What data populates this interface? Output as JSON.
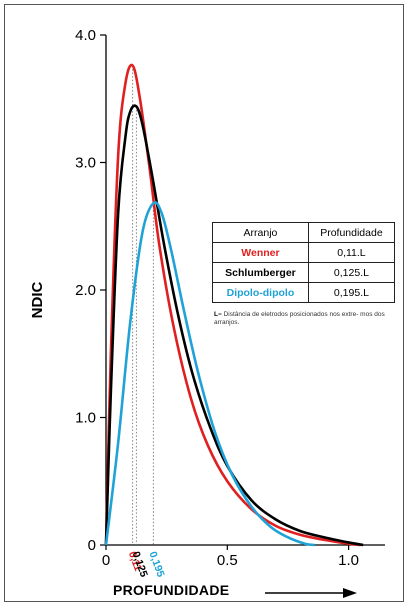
{
  "chart_data": {
    "type": "line",
    "xlabel": "PROFUNDIDADE",
    "ylabel": "NDIC",
    "xlim": [
      0,
      1.15
    ],
    "ylim": [
      0,
      4.0
    ],
    "x_ticks": [
      {
        "value": 0,
        "label": "0"
      },
      {
        "value": 0.5,
        "label": "0.5"
      },
      {
        "value": 1.0,
        "label": "1.0"
      }
    ],
    "y_ticks": [
      {
        "value": 0,
        "label": "0"
      },
      {
        "value": 1.0,
        "label": "1.0"
      },
      {
        "value": 2.0,
        "label": "2.0"
      },
      {
        "value": 3.0,
        "label": "3.0"
      },
      {
        "value": 4.0,
        "label": "4.0"
      }
    ],
    "peak_markers": [
      {
        "x": 0.11,
        "label": "0,11",
        "color": "#e02020"
      },
      {
        "x": 0.125,
        "label": "0,125",
        "color": "#000000"
      },
      {
        "x": 0.195,
        "label": "0,195",
        "color": "#1fa3d6"
      }
    ],
    "series": [
      {
        "name": "Wenner",
        "color": "#e02020",
        "x": [
          0,
          0.02,
          0.05,
          0.08,
          0.11,
          0.14,
          0.18,
          0.22,
          0.28,
          0.35,
          0.42,
          0.5,
          0.6,
          0.7,
          0.8,
          0.9,
          1.0,
          1.05
        ],
        "y": [
          0,
          1.5,
          3.05,
          3.62,
          3.76,
          3.5,
          2.95,
          2.35,
          1.7,
          1.15,
          0.78,
          0.5,
          0.28,
          0.15,
          0.08,
          0.04,
          0.01,
          0
        ]
      },
      {
        "name": "Schlumberger",
        "color": "#000000",
        "x": [
          0,
          0.02,
          0.05,
          0.08,
          0.1,
          0.125,
          0.15,
          0.19,
          0.24,
          0.3,
          0.36,
          0.43,
          0.5,
          0.6,
          0.7,
          0.8,
          0.9,
          1.0,
          1.06
        ],
        "y": [
          0,
          1.2,
          2.6,
          3.2,
          3.4,
          3.44,
          3.3,
          2.9,
          2.35,
          1.78,
          1.32,
          0.92,
          0.62,
          0.35,
          0.2,
          0.11,
          0.06,
          0.02,
          0
        ]
      },
      {
        "name": "Dipolo-dipolo",
        "color": "#1fa3d6",
        "x": [
          0,
          0.05,
          0.1,
          0.15,
          0.195,
          0.23,
          0.27,
          0.32,
          0.38,
          0.45,
          0.52,
          0.6,
          0.68,
          0.75,
          0.82,
          0.86
        ],
        "y": [
          0,
          0.8,
          1.75,
          2.45,
          2.68,
          2.6,
          2.3,
          1.85,
          1.35,
          0.88,
          0.55,
          0.3,
          0.14,
          0.06,
          0.01,
          0
        ]
      }
    ]
  },
  "table": {
    "header": [
      "Arranjo",
      "Profundidade"
    ],
    "rows": [
      {
        "name": "Wenner",
        "value": "0,11.L",
        "color": "#e02020"
      },
      {
        "name": "Schlumberger",
        "value": "0,125.L",
        "color": "#000000"
      },
      {
        "name": "Dipolo-dipolo",
        "value": "0,195.L",
        "color": "#1fa3d6"
      }
    ]
  },
  "footnote": {
    "key": "L",
    "text": "= Distância de eletrodos posicionados nos extre- mos dos arranjos."
  }
}
